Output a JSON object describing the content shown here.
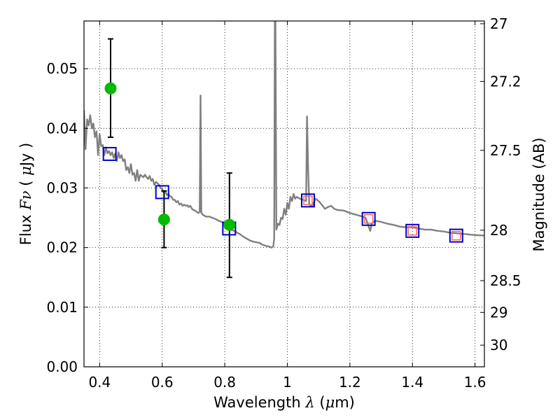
{
  "chart_data": {
    "type": "line",
    "xlabel": "Wavelength",
    "xlabel_symbol": "λ",
    "xlabel_unit_open": " (",
    "xlabel_unit_mu": "μ",
    "xlabel_unit_close": "m)",
    "ylabel": "Flux",
    "ylabel_symbol": "Fν",
    "ylabel_unit_open": "( ",
    "ylabel_unit_mu": "μ",
    "ylabel_unit_close": "Jy )",
    "ylabel_right": "Magnitude (AB)",
    "xlim": [
      0.35,
      1.63
    ],
    "ylim": [
      0.0,
      0.058
    ],
    "grid": true,
    "x_ticks": [
      0.4,
      0.6,
      0.8,
      1.0,
      1.2,
      1.4,
      1.6
    ],
    "x_tick_labels": [
      "0.4",
      "0.6",
      "0.8",
      "1",
      "1.2",
      "1.4",
      "1.6"
    ],
    "y_ticks": [
      0.0,
      0.01,
      0.02,
      0.03,
      0.04,
      0.05
    ],
    "y_tick_labels": [
      "0.00",
      "0.01",
      "0.02",
      "0.03",
      "0.04",
      "0.05"
    ],
    "right_ticks": [
      {
        "mag": 27,
        "label": "27"
      },
      {
        "mag": 27.2,
        "label": "27.2"
      },
      {
        "mag": 27.5,
        "label": "27.5"
      },
      {
        "mag": 28,
        "label": "28"
      },
      {
        "mag": 28.5,
        "label": "28.5"
      },
      {
        "mag": 29,
        "label": "29"
      },
      {
        "mag": 30,
        "label": "30"
      }
    ],
    "colors": {
      "spectrum": "#808080",
      "observed": "#00bb00",
      "model_box": "#0000cc",
      "model_inner": "#ff6666",
      "errorbar": "#000000"
    },
    "series": [
      {
        "name": "Model spectrum",
        "style": "line",
        "points": [
          [
            0.35,
            0.043
          ],
          [
            0.355,
            0.0365
          ],
          [
            0.36,
            0.0415
          ],
          [
            0.365,
            0.0405
          ],
          [
            0.37,
            0.0422
          ],
          [
            0.375,
            0.04
          ],
          [
            0.38,
            0.0408
          ],
          [
            0.385,
            0.0385
          ],
          [
            0.39,
            0.0395
          ],
          [
            0.395,
            0.0355
          ],
          [
            0.4,
            0.039
          ],
          [
            0.405,
            0.037
          ],
          [
            0.41,
            0.0372
          ],
          [
            0.415,
            0.0355
          ],
          [
            0.42,
            0.0368
          ],
          [
            0.425,
            0.0358
          ],
          [
            0.43,
            0.0362
          ],
          [
            0.435,
            0.0355
          ],
          [
            0.44,
            0.036
          ],
          [
            0.445,
            0.035
          ],
          [
            0.45,
            0.0358
          ],
          [
            0.455,
            0.0345
          ],
          [
            0.46,
            0.036
          ],
          [
            0.465,
            0.035
          ],
          [
            0.47,
            0.0355
          ],
          [
            0.475,
            0.0345
          ],
          [
            0.48,
            0.0348
          ],
          [
            0.485,
            0.033
          ],
          [
            0.49,
            0.0335
          ],
          [
            0.495,
            0.0325
          ],
          [
            0.5,
            0.034
          ],
          [
            0.505,
            0.0322
          ],
          [
            0.51,
            0.0325
          ],
          [
            0.515,
            0.0312
          ],
          [
            0.52,
            0.033
          ],
          [
            0.525,
            0.0312
          ],
          [
            0.53,
            0.0322
          ],
          [
            0.535,
            0.032
          ],
          [
            0.54,
            0.0318
          ],
          [
            0.545,
            0.0322
          ],
          [
            0.55,
            0.0318
          ],
          [
            0.555,
            0.0315
          ],
          [
            0.56,
            0.032
          ],
          [
            0.565,
            0.0312
          ],
          [
            0.57,
            0.0315
          ],
          [
            0.575,
            0.0305
          ],
          [
            0.58,
            0.031
          ],
          [
            0.585,
            0.0308
          ],
          [
            0.59,
            0.0305
          ],
          [
            0.595,
            0.03
          ],
          [
            0.6,
            0.0298
          ],
          [
            0.605,
            0.0292
          ],
          [
            0.61,
            0.0294
          ],
          [
            0.615,
            0.0288
          ],
          [
            0.62,
            0.029
          ],
          [
            0.625,
            0.0286
          ],
          [
            0.63,
            0.0285
          ],
          [
            0.635,
            0.028
          ],
          [
            0.64,
            0.028
          ],
          [
            0.645,
            0.0276
          ],
          [
            0.65,
            0.0278
          ],
          [
            0.655,
            0.0272
          ],
          [
            0.66,
            0.0274
          ],
          [
            0.665,
            0.027
          ],
          [
            0.67,
            0.0272
          ],
          [
            0.675,
            0.027
          ],
          [
            0.68,
            0.0271
          ],
          [
            0.685,
            0.0268
          ],
          [
            0.69,
            0.027
          ],
          [
            0.695,
            0.0265
          ],
          [
            0.7,
            0.0263
          ],
          [
            0.705,
            0.0262
          ],
          [
            0.71,
            0.026
          ],
          [
            0.715,
            0.0258
          ],
          [
            0.72,
            0.026
          ],
          [
            0.7225,
            0.0455
          ],
          [
            0.725,
            0.0258
          ],
          [
            0.73,
            0.0255
          ],
          [
            0.74,
            0.0252
          ],
          [
            0.75,
            0.0252
          ],
          [
            0.76,
            0.025
          ],
          [
            0.77,
            0.0248
          ],
          [
            0.78,
            0.0245
          ],
          [
            0.79,
            0.0243
          ],
          [
            0.8,
            0.024
          ],
          [
            0.81,
            0.0235
          ],
          [
            0.82,
            0.023
          ],
          [
            0.83,
            0.0228
          ],
          [
            0.84,
            0.0225
          ],
          [
            0.85,
            0.0222
          ],
          [
            0.86,
            0.0218
          ],
          [
            0.87,
            0.0215
          ],
          [
            0.88,
            0.0212
          ],
          [
            0.89,
            0.021
          ],
          [
            0.9,
            0.0209
          ],
          [
            0.91,
            0.0208
          ],
          [
            0.92,
            0.0205
          ],
          [
            0.93,
            0.0203
          ],
          [
            0.94,
            0.0202
          ],
          [
            0.95,
            0.02
          ],
          [
            0.955,
            0.0202
          ],
          [
            0.958,
            0.0215
          ],
          [
            0.96,
            0.058
          ],
          [
            0.962,
            0.058
          ],
          [
            0.965,
            0.023
          ],
          [
            0.97,
            0.024
          ],
          [
            0.975,
            0.0238
          ],
          [
            0.98,
            0.025
          ],
          [
            0.985,
            0.0248
          ],
          [
            0.99,
            0.0265
          ],
          [
            0.995,
            0.0255
          ],
          [
            1.0,
            0.0275
          ],
          [
            1.005,
            0.0265
          ],
          [
            1.01,
            0.0285
          ],
          [
            1.015,
            0.0278
          ],
          [
            1.02,
            0.029
          ],
          [
            1.025,
            0.0282
          ],
          [
            1.03,
            0.0285
          ],
          [
            1.04,
            0.0282
          ],
          [
            1.05,
            0.028
          ],
          [
            1.06,
            0.0278
          ],
          [
            1.063,
            0.042
          ],
          [
            1.066,
            0.034
          ],
          [
            1.07,
            0.0272
          ],
          [
            1.075,
            0.027
          ],
          [
            1.08,
            0.027
          ],
          [
            1.09,
            0.0282
          ],
          [
            1.1,
            0.0278
          ],
          [
            1.11,
            0.0272
          ],
          [
            1.12,
            0.0265
          ],
          [
            1.13,
            0.0268
          ],
          [
            1.14,
            0.027
          ],
          [
            1.15,
            0.0265
          ],
          [
            1.16,
            0.0263
          ],
          [
            1.18,
            0.0262
          ],
          [
            1.2,
            0.0258
          ],
          [
            1.22,
            0.0255
          ],
          [
            1.24,
            0.0252
          ],
          [
            1.25,
            0.025
          ],
          [
            1.255,
            0.0243
          ],
          [
            1.26,
            0.0235
          ],
          [
            1.265,
            0.0228
          ],
          [
            1.27,
            0.024
          ],
          [
            1.28,
            0.0245
          ],
          [
            1.3,
            0.0243
          ],
          [
            1.32,
            0.024
          ],
          [
            1.34,
            0.0238
          ],
          [
            1.36,
            0.0235
          ],
          [
            1.38,
            0.0234
          ],
          [
            1.4,
            0.0234
          ],
          [
            1.42,
            0.0232
          ],
          [
            1.44,
            0.023
          ],
          [
            1.46,
            0.023
          ],
          [
            1.48,
            0.0228
          ],
          [
            1.5,
            0.0227
          ],
          [
            1.52,
            0.0225
          ],
          [
            1.54,
            0.0224
          ],
          [
            1.56,
            0.0223
          ],
          [
            1.58,
            0.0222
          ],
          [
            1.6,
            0.0221
          ],
          [
            1.63,
            0.022
          ]
        ]
      },
      {
        "name": "Model photometry",
        "style": "square",
        "points": [
          [
            0.432,
            0.0357
          ],
          [
            0.6,
            0.0293
          ],
          [
            0.814,
            0.0232
          ],
          [
            1.066,
            0.0279
          ],
          [
            1.26,
            0.0248
          ],
          [
            1.4,
            0.0228
          ],
          [
            1.54,
            0.022
          ]
        ],
        "inner": [
          false,
          false,
          false,
          true,
          true,
          true,
          true
        ]
      },
      {
        "name": "Observed photometry",
        "style": "circle",
        "points": [
          [
            0.435,
            0.0467
          ],
          [
            0.606,
            0.0247
          ],
          [
            0.815,
            0.0238
          ]
        ]
      },
      {
        "name": "Error bars",
        "style": "errorbar",
        "bars": [
          {
            "x": 0.435,
            "low": 0.0385,
            "high": 0.055
          },
          {
            "x": 0.606,
            "low": 0.02,
            "high": 0.0295
          },
          {
            "x": 0.815,
            "low": 0.015,
            "high": 0.0325
          }
        ]
      }
    ]
  }
}
